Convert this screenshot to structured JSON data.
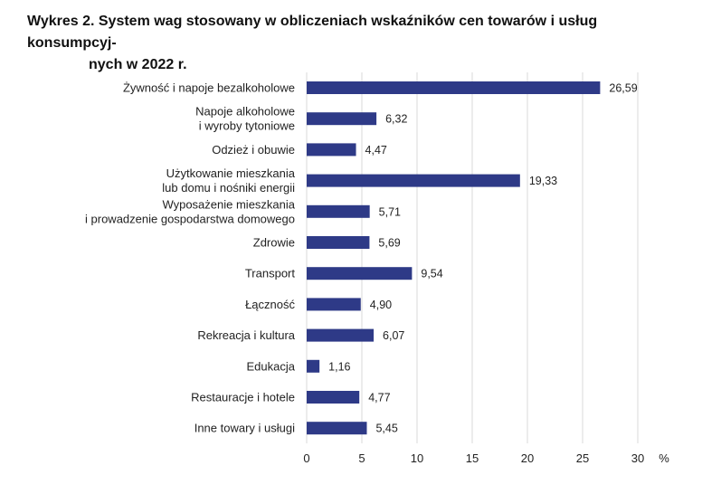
{
  "title": {
    "line1": "Wykres 2. System wag stosowany w obliczeniach wskaźników cen towarów i usług konsumpcyj-",
    "line2": "nych w 2022 r."
  },
  "chart_data": {
    "type": "bar",
    "orientation": "horizontal",
    "title": "Wykres 2. System wag stosowany w obliczeniach wskaźników cen towarów i usług konsumpcyjnych w 2022 r.",
    "xlabel": "%",
    "ylabel": "",
    "xlim": [
      0,
      30
    ],
    "xticks": [
      "0",
      "5",
      "10",
      "15",
      "20",
      "25",
      "30"
    ],
    "xtick_values": [
      0,
      5,
      10,
      15,
      20,
      25,
      30
    ],
    "grid": "vertical",
    "bar_color": "#2e3a87",
    "grid_color": "#d9d9d9",
    "categories": [
      [
        "Żywność i napoje bezalkoholowe"
      ],
      [
        "Napoje alkoholowe",
        "i wyroby tytoniowe"
      ],
      [
        "Odzież i obuwie"
      ],
      [
        "Użytkowanie mieszkania",
        "lub domu i nośniki energii"
      ],
      [
        "Wyposażenie mieszkania",
        "i prowadzenie gospodarstwa domowego"
      ],
      [
        "Zdrowie"
      ],
      [
        "Transport"
      ],
      [
        "Łączność"
      ],
      [
        "Rekreacja i kultura"
      ],
      [
        "Edukacja"
      ],
      [
        "Restauracje i hotele"
      ],
      [
        "Inne towary i usługi"
      ]
    ],
    "values": [
      26.59,
      6.32,
      4.47,
      19.33,
      5.71,
      5.69,
      9.54,
      4.9,
      6.07,
      1.16,
      4.77,
      5.45
    ],
    "value_labels": [
      "26,59",
      "6,32",
      "4,47",
      "19,33",
      "5,71",
      "5,69",
      "9,54",
      "4,90",
      "6,07",
      "1,16",
      "4,77",
      "5,45"
    ]
  }
}
